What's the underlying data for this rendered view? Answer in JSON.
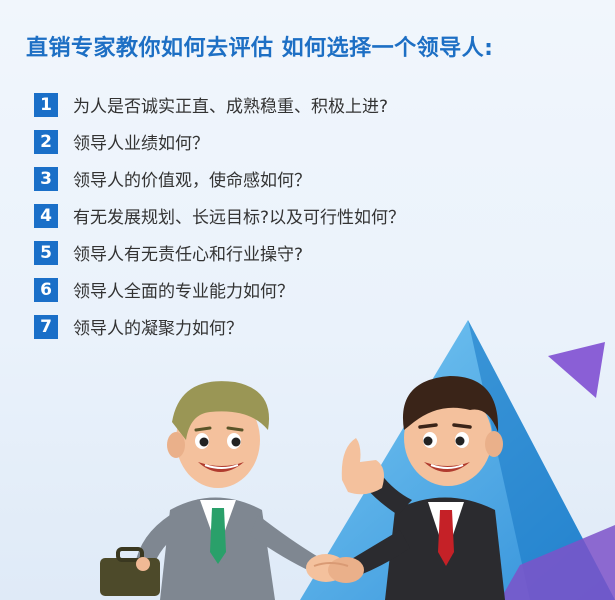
{
  "title": "直销专家教你如何去评估 如何选择一个领导人:",
  "items": [
    {
      "num": "1",
      "text": "为人是否诚实正直、成熟稳重、积极上进?"
    },
    {
      "num": "2",
      "text": "领导人业绩如何？"
    },
    {
      "num": "3",
      "text": "领导人的价值观，使命感如何？"
    },
    {
      "num": "4",
      "text": "有无发展规划、长远目标?以及可行性如何？"
    },
    {
      "num": "5",
      "text": "领导人有无责任心和行业操守?"
    },
    {
      "num": "6",
      "text": "领导人全面的专业能力如何？"
    },
    {
      "num": "7",
      "text": "领导人的凝聚力如何？"
    }
  ],
  "colors": {
    "accent": "#1d6fc4",
    "badge": "#1a6fc8",
    "text": "#333333",
    "triangle": "#3fa9e8",
    "triangle_small": "#8a5fd6"
  },
  "illustration": "two-businessmen-handshake"
}
